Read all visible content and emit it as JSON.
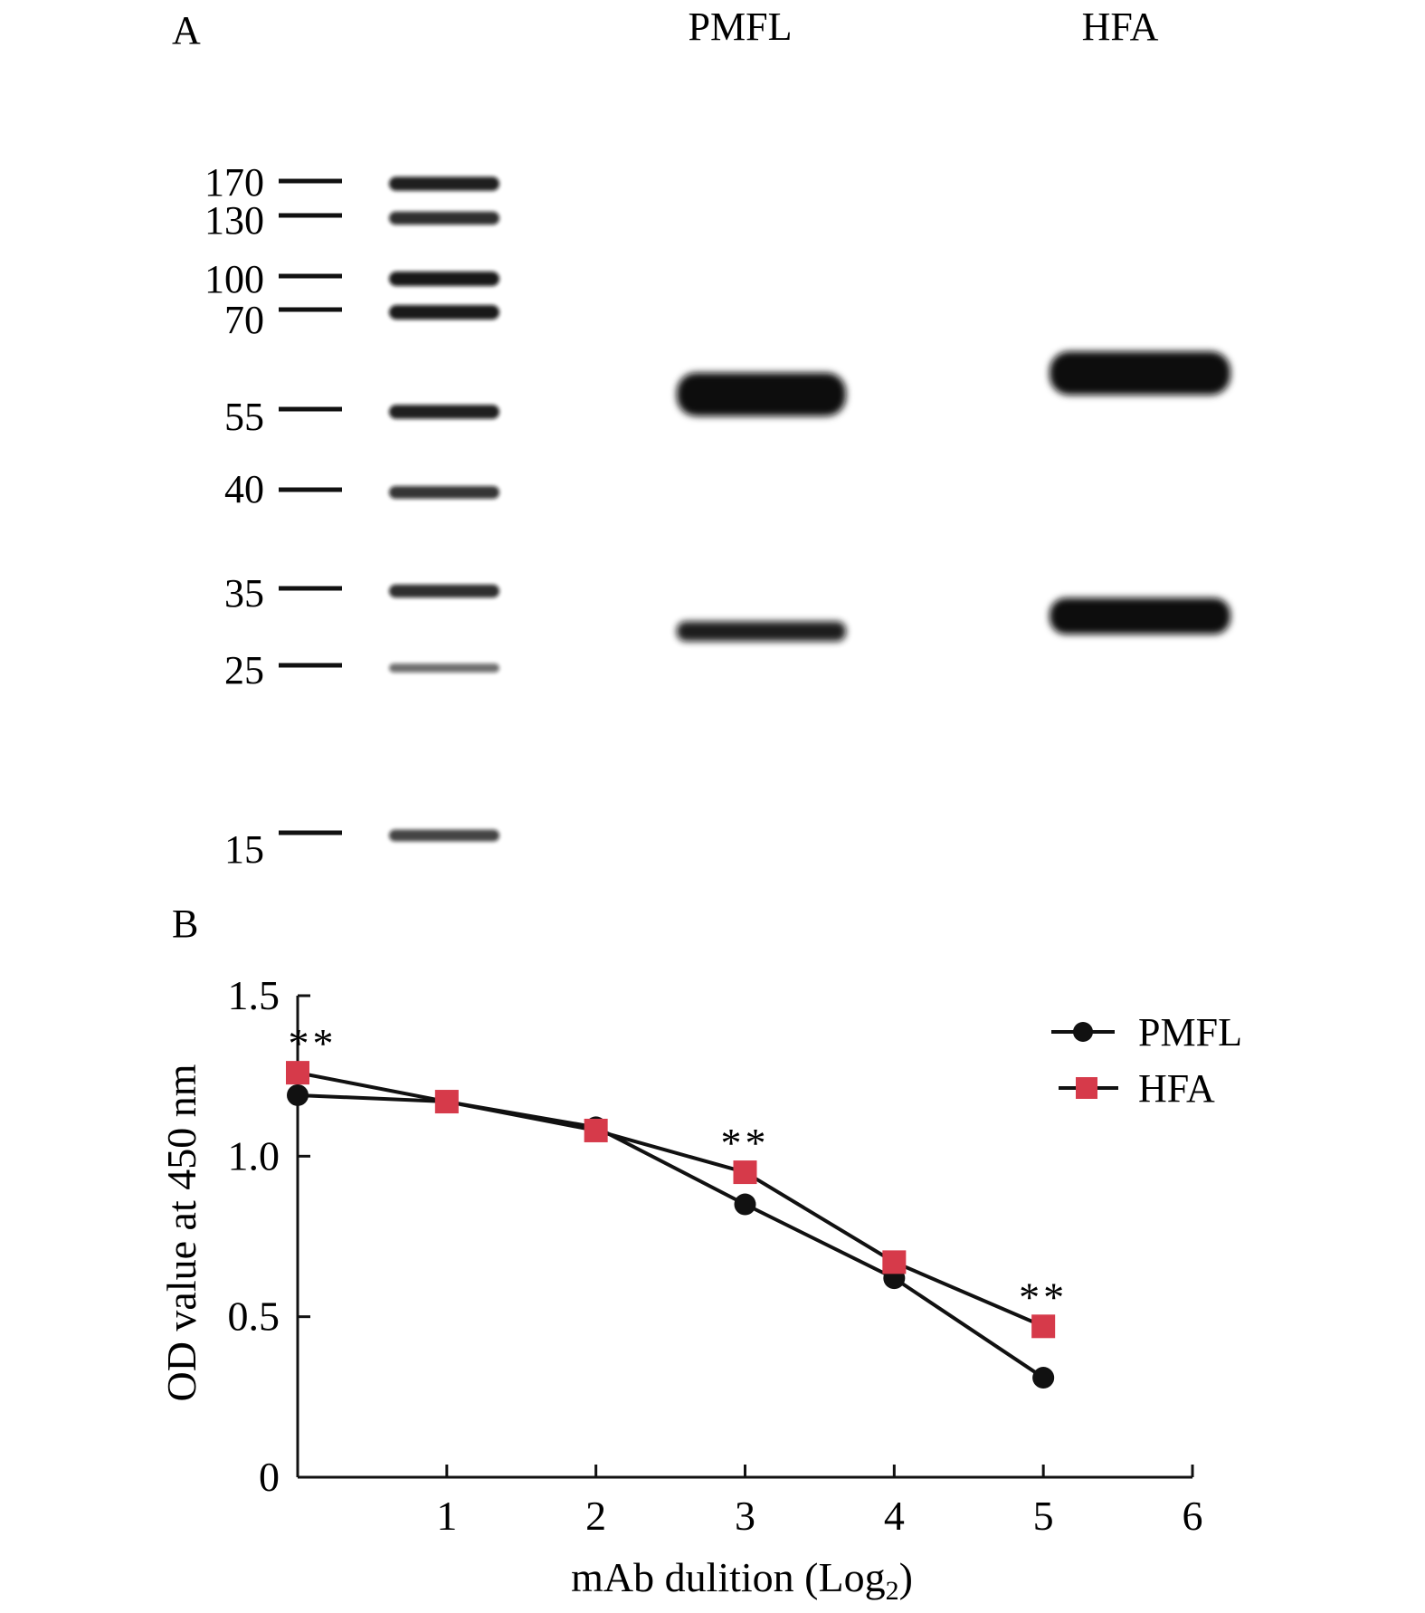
{
  "panel_a": {
    "label": "A",
    "lane_labels": [
      "PMFL",
      "HFA"
    ],
    "marker_sizes": [
      "170",
      "130",
      "100",
      "70",
      "55",
      "40",
      "35",
      "25",
      "15"
    ],
    "marker_lane_band_strength": [
      0.95,
      0.85,
      1.0,
      1.0,
      0.95,
      0.8,
      0.85,
      0.4,
      0.7
    ],
    "sample_bands": [
      {
        "lane": "PMFL",
        "kda": 57,
        "strength": 1.0
      },
      {
        "lane": "PMFL",
        "kda": 29,
        "strength": 0.85
      },
      {
        "lane": "HFA",
        "kda": 60,
        "strength": 1.0
      },
      {
        "lane": "HFA",
        "kda": 31,
        "strength": 1.0
      }
    ]
  },
  "panel_b": {
    "label": "B",
    "colors": {
      "PMFL": "#111111",
      "HFA": "#d63a4a"
    },
    "chart_data": {
      "type": "line",
      "xlabel": "mAb dulition (Log",
      "xlabel_subscript": "2",
      "xlabel_suffix": ")",
      "ylabel": "OD value at 450 nm",
      "xlim": [
        0,
        6
      ],
      "ylim": [
        0,
        1.5
      ],
      "x_ticks": [
        1,
        2,
        3,
        4,
        5,
        6
      ],
      "x_tick_labels": [
        "1",
        "2",
        "3",
        "4",
        "5",
        "6"
      ],
      "y_ticks": [
        0,
        0.5,
        1.0,
        1.5
      ],
      "y_tick_labels": [
        "0",
        "0.5",
        "1.0",
        "1.5"
      ],
      "legend_position": "top-right",
      "grid": false,
      "series": [
        {
          "name": "PMFL",
          "marker": "circle",
          "x": [
            0,
            1,
            2,
            3,
            4,
            5
          ],
          "y": [
            1.19,
            1.17,
            1.09,
            0.85,
            0.62,
            0.31
          ]
        },
        {
          "name": "HFA",
          "marker": "square",
          "x": [
            0,
            1,
            2,
            3,
            4,
            5
          ],
          "y": [
            1.26,
            1.17,
            1.08,
            0.95,
            0.67,
            0.47
          ]
        }
      ],
      "annotations": [
        {
          "text": "**",
          "x": 0.1,
          "y": 1.37
        },
        {
          "text": "**",
          "x": 3.0,
          "y": 1.06
        },
        {
          "text": "**",
          "x": 5.0,
          "y": 0.58
        }
      ]
    }
  }
}
